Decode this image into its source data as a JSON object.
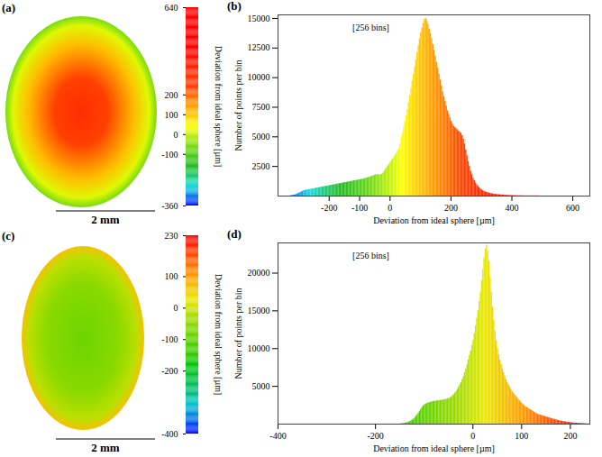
{
  "chart_data": [
    {
      "type": "image",
      "panel": "(a)",
      "scale_bar": "2 mm",
      "colorbar": {
        "label": "Deviation from ideal sphere [µm]",
        "range": [
          -360,
          640
        ],
        "ticks": [
          -360,
          -100,
          0,
          100,
          200,
          640
        ],
        "colors": [
          "#0000ff",
          "#22bb22",
          "#ffff00",
          "#ff4000",
          "#ff0000",
          "#ff0000"
        ]
      }
    },
    {
      "type": "histogram",
      "panel": "(b)",
      "annotation": "[256 bins]",
      "x_label": "Deviation from ideal sphere [µm]",
      "y_label": "Number of points per bin",
      "xlim": [
        -368,
        656
      ],
      "xticks": [
        -200,
        -100,
        0,
        200,
        400,
        600
      ],
      "ylim": [
        0,
        15300
      ],
      "yticks": [
        2500,
        5000,
        7500,
        10000,
        12500,
        15000
      ],
      "bins": [
        -368,
        -364,
        -360,
        -356,
        -352,
        -348,
        -344,
        -340,
        -336,
        -332,
        -328,
        -324,
        -320,
        -316,
        -312,
        -308,
        -304,
        -300,
        -296,
        -292,
        -288,
        -284,
        -280,
        -276,
        -272,
        -268,
        -264,
        -260,
        -256,
        -252,
        -248,
        -244,
        -240,
        -236,
        -232,
        -228,
        -224,
        -220,
        -216,
        -212,
        -208,
        -204,
        -200,
        -196,
        -192,
        -188,
        -184,
        -180,
        -176,
        -172,
        -168,
        -164,
        -160,
        -156,
        -152,
        -148,
        -144,
        -140,
        -136,
        -132,
        -128,
        -124,
        -120,
        -116,
        -112,
        -108,
        -104,
        -100,
        -96,
        -92,
        -88,
        -84,
        -80,
        -76,
        -72,
        -68,
        -64,
        -60,
        -56,
        -52,
        -48,
        -44,
        -40,
        -36,
        -32,
        -28,
        -24,
        -20,
        -16,
        -12,
        -8,
        -4,
        0,
        4,
        8,
        12,
        16,
        20,
        24,
        28,
        32,
        36,
        40,
        44,
        48,
        52,
        56,
        60,
        64,
        68,
        72,
        76,
        80,
        84,
        88,
        92,
        96,
        100,
        104,
        108,
        112,
        116,
        120,
        124,
        128,
        132,
        136,
        140,
        144,
        148,
        152,
        156,
        160,
        164,
        168,
        172,
        176,
        180,
        184,
        188,
        192,
        196,
        200,
        204,
        208,
        212,
        216,
        220,
        224,
        228,
        232,
        236,
        240,
        244,
        248,
        252,
        256,
        260,
        264,
        268,
        272,
        276,
        280,
        284,
        288,
        292,
        296,
        300,
        304,
        308,
        312,
        316,
        320,
        324,
        328,
        332,
        336,
        340,
        344,
        348,
        352,
        356,
        360,
        364,
        368,
        372,
        376,
        380,
        384,
        388,
        392,
        396,
        400,
        404,
        408,
        412,
        416,
        420,
        424,
        428,
        432,
        436,
        440,
        444,
        448,
        452,
        456,
        460,
        464,
        468,
        472,
        476,
        480,
        484,
        488,
        492,
        496,
        500,
        504,
        508,
        512,
        516,
        520,
        524,
        528,
        532,
        536,
        540,
        544,
        548,
        552,
        556,
        560,
        564,
        568,
        572,
        576,
        580,
        584,
        588,
        592,
        596,
        600,
        604,
        608,
        612,
        616,
        620,
        624,
        628,
        632,
        636,
        640,
        644,
        648,
        652,
        656
      ],
      "values": [
        0,
        0,
        0,
        0,
        0,
        0,
        0,
        0,
        0,
        0,
        20,
        40,
        60,
        80,
        100,
        150,
        200,
        250,
        300,
        350,
        400,
        450,
        480,
        500,
        520,
        540,
        560,
        580,
        600,
        620,
        640,
        660,
        680,
        700,
        720,
        740,
        760,
        780,
        800,
        820,
        840,
        860,
        880,
        900,
        920,
        940,
        960,
        980,
        1000,
        1020,
        1040,
        1060,
        1080,
        1100,
        1120,
        1140,
        1160,
        1180,
        1200,
        1220,
        1240,
        1260,
        1280,
        1300,
        1320,
        1340,
        1360,
        1380,
        1400,
        1420,
        1450,
        1480,
        1510,
        1540,
        1570,
        1600,
        1640,
        1680,
        1720,
        1760,
        1800,
        1820,
        1800,
        1780,
        1800,
        1850,
        1950,
        2100,
        2250,
        2400,
        2550,
        2700,
        2850,
        3000,
        3150,
        3300,
        3450,
        3600,
        3800,
        4000,
        4400,
        4900,
        5300,
        5800,
        6300,
        6800,
        7300,
        7900,
        8500,
        9100,
        9700,
        10300,
        10900,
        11500,
        12100,
        12700,
        13300,
        13800,
        14200,
        14600,
        14900,
        15000,
        14800,
        14500,
        14100,
        13700,
        13300,
        12800,
        12300,
        11800,
        11300,
        10800,
        10300,
        9800,
        9300,
        8800,
        8400,
        8000,
        7600,
        7200,
        6900,
        6600,
        6300,
        6100,
        5900,
        5800,
        5700,
        5600,
        5500,
        5400,
        5300,
        5100,
        4800,
        4400,
        3900,
        3400,
        2900,
        2500,
        2100,
        1800,
        1500,
        1300,
        1100,
        950,
        820,
        700,
        600,
        520,
        450,
        400,
        350,
        310,
        280,
        250,
        220,
        200,
        180,
        160,
        140,
        130,
        120,
        110,
        100,
        90,
        80,
        70,
        60,
        60,
        50,
        50,
        40,
        40,
        40,
        30,
        30,
        30,
        20,
        20,
        20,
        20,
        20,
        10,
        10,
        10,
        10,
        10,
        10,
        10,
        10,
        10,
        10,
        10,
        10,
        10,
        10,
        0,
        0,
        0,
        0,
        0,
        0,
        0,
        0,
        0,
        0,
        0,
        0,
        0,
        0,
        0,
        0,
        0,
        0,
        0,
        0,
        0,
        0,
        0,
        0,
        0,
        0,
        0,
        0,
        0,
        0,
        0,
        0,
        0,
        0,
        0,
        0,
        0,
        0,
        0,
        0,
        0
      ]
    },
    {
      "type": "image",
      "panel": "(c)",
      "scale_bar": "2 mm",
      "colorbar": {
        "label": "Deviation from ideal sphere [µm]",
        "range": [
          -400,
          230
        ],
        "ticks": [
          -400,
          -200,
          -100,
          0,
          100,
          230
        ],
        "colors": [
          "#0000ff",
          "#00bb88",
          "#33cc00",
          "#aadd00",
          "#ff9900",
          "#ff0000"
        ]
      }
    },
    {
      "type": "histogram",
      "panel": "(d)",
      "annotation": "[256 bins]",
      "x_label": "Deviation from ideal sphere [µm]",
      "y_label": "Number of points per bin",
      "xlim": [
        -400,
        240
      ],
      "xticks": [
        -400,
        -200,
        0,
        100,
        200
      ],
      "ylim": [
        0,
        24000
      ],
      "yticks": [
        5000,
        10000,
        15000,
        20000
      ],
      "bins": [
        -400,
        -397.5,
        -395,
        -392.5,
        -390,
        -387.5,
        -385,
        -382.5,
        -380,
        -377.5,
        -375,
        -372.5,
        -370,
        -367.5,
        -365,
        -362.5,
        -360,
        -357.5,
        -355,
        -352.5,
        -350,
        -347.5,
        -345,
        -342.5,
        -340,
        -337.5,
        -335,
        -332.5,
        -330,
        -327.5,
        -325,
        -322.5,
        -320,
        -317.5,
        -315,
        -312.5,
        -310,
        -307.5,
        -305,
        -302.5,
        -300,
        -297.5,
        -295,
        -292.5,
        -290,
        -287.5,
        -285,
        -282.5,
        -280,
        -277.5,
        -275,
        -272.5,
        -270,
        -267.5,
        -265,
        -262.5,
        -260,
        -257.5,
        -255,
        -252.5,
        -250,
        -247.5,
        -245,
        -242.5,
        -240,
        -237.5,
        -235,
        -232.5,
        -230,
        -227.5,
        -225,
        -222.5,
        -220,
        -217.5,
        -215,
        -212.5,
        -210,
        -207.5,
        -205,
        -202.5,
        -200,
        -197.5,
        -195,
        -192.5,
        -190,
        -187.5,
        -185,
        -182.5,
        -180,
        -177.5,
        -175,
        -172.5,
        -170,
        -167.5,
        -165,
        -162.5,
        -160,
        -157.5,
        -155,
        -152.5,
        -150,
        -147.5,
        -145,
        -142.5,
        -140,
        -137.5,
        -135,
        -132.5,
        -130,
        -127.5,
        -125,
        -122.5,
        -120,
        -117.5,
        -115,
        -112.5,
        -110,
        -107.5,
        -105,
        -102.5,
        -100,
        -97.5,
        -95,
        -92.5,
        -90,
        -87.5,
        -85,
        -82.5,
        -80,
        -77.5,
        -75,
        -72.5,
        -70,
        -67.5,
        -65,
        -62.5,
        -60,
        -57.5,
        -55,
        -52.5,
        -50,
        -47.5,
        -45,
        -42.5,
        -40,
        -37.5,
        -35,
        -32.5,
        -30,
        -27.5,
        -25,
        -22.5,
        -20,
        -17.5,
        -15,
        -12.5,
        -10,
        -7.5,
        -5,
        -2.5,
        0,
        2.5,
        5,
        7.5,
        10,
        12.5,
        15,
        17.5,
        20,
        22.5,
        25,
        27.5,
        30,
        32.5,
        35,
        37.5,
        40,
        42.5,
        45,
        47.5,
        50,
        52.5,
        55,
        57.5,
        60,
        62.5,
        65,
        67.5,
        70,
        72.5,
        75,
        77.5,
        80,
        82.5,
        85,
        87.5,
        90,
        92.5,
        95,
        97.5,
        100,
        102.5,
        105,
        107.5,
        110,
        112.5,
        115,
        117.5,
        120,
        122.5,
        125,
        127.5,
        130,
        132.5,
        135,
        137.5,
        140,
        142.5,
        145,
        147.5,
        150,
        152.5,
        155,
        157.5,
        160,
        162.5,
        165,
        167.5,
        170,
        172.5,
        175,
        177.5,
        180,
        182.5,
        185,
        187.5,
        190,
        192.5,
        195,
        197.5,
        200,
        202.5,
        205,
        207.5,
        210,
        212.5,
        215,
        217.5,
        220,
        222.5,
        225,
        227.5,
        230,
        232.5,
        235,
        237.5,
        240
      ],
      "values": [
        0,
        0,
        0,
        0,
        0,
        0,
        0,
        0,
        0,
        0,
        0,
        0,
        0,
        0,
        0,
        0,
        0,
        0,
        0,
        0,
        0,
        0,
        0,
        0,
        0,
        0,
        0,
        0,
        0,
        0,
        0,
        0,
        0,
        0,
        0,
        0,
        0,
        0,
        0,
        0,
        0,
        0,
        0,
        0,
        0,
        0,
        0,
        0,
        0,
        0,
        0,
        0,
        0,
        0,
        0,
        0,
        0,
        0,
        0,
        0,
        0,
        0,
        0,
        0,
        0,
        0,
        0,
        0,
        0,
        0,
        0,
        0,
        0,
        0,
        0,
        0,
        0,
        0,
        0,
        0,
        0,
        0,
        0,
        0,
        0,
        0,
        0,
        0,
        0,
        0,
        0,
        0,
        0,
        0,
        0,
        0,
        0,
        0,
        0,
        10,
        20,
        40,
        60,
        90,
        120,
        160,
        200,
        260,
        330,
        420,
        520,
        650,
        800,
        1000,
        1200,
        1450,
        1700,
        1950,
        2200,
        2400,
        2550,
        2650,
        2750,
        2800,
        2850,
        2900,
        2950,
        3000,
        3000,
        3050,
        3050,
        3100,
        3100,
        3150,
        3150,
        3200,
        3200,
        3250,
        3300,
        3350,
        3400,
        3500,
        3600,
        3750,
        3900,
        4100,
        4300,
        4600,
        4900,
        5200,
        5500,
        5900,
        6300,
        6800,
        7300,
        7900,
        8500,
        9100,
        9700,
        10400,
        11100,
        12000,
        13000,
        14000,
        15000,
        16200,
        17500,
        19000,
        20500,
        22000,
        23200,
        23700,
        23000,
        21500,
        19500,
        17500,
        15500,
        13800,
        12300,
        11000,
        10000,
        9200,
        8500,
        7900,
        7300,
        6800,
        6300,
        5900,
        5500,
        5200,
        4900,
        4600,
        4300,
        4100,
        3900,
        3700,
        3500,
        3300,
        3100,
        2900,
        2750,
        2600,
        2450,
        2300,
        2200,
        2100,
        2000,
        1900,
        1800,
        1700,
        1600,
        1500,
        1400,
        1300,
        1250,
        1200,
        1150,
        1100,
        1050,
        1000,
        950,
        900,
        850,
        800,
        750,
        700,
        650,
        600,
        560,
        520,
        480,
        440,
        400,
        370,
        340,
        310,
        280,
        250,
        230,
        210,
        190,
        170,
        150,
        130,
        120,
        110,
        100,
        90,
        80,
        70,
        60,
        50,
        40,
        30,
        20,
        10
      ]
    }
  ]
}
